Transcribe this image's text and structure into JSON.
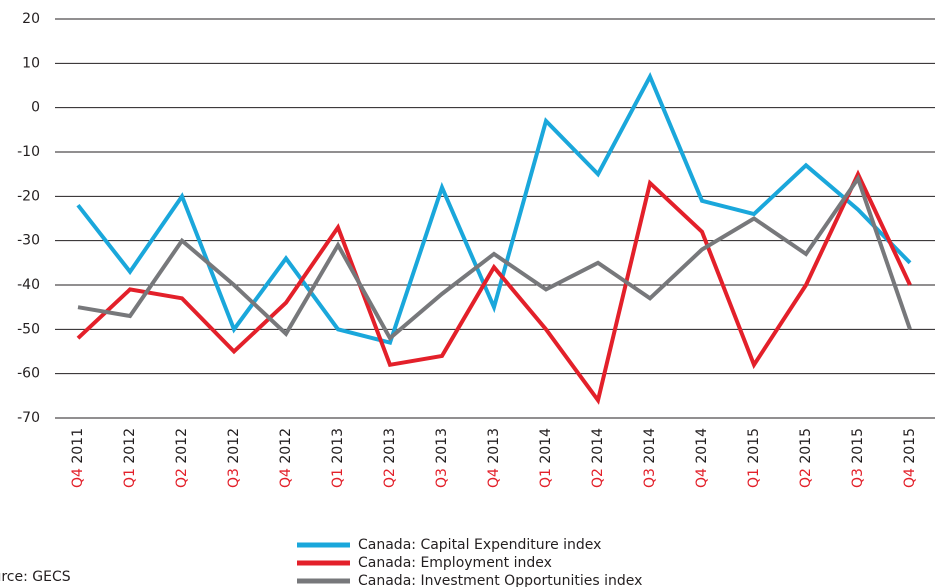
{
  "chart_data": {
    "type": "line",
    "categories": [
      "Q4 2011",
      "Q1 2012",
      "Q2 2012",
      "Q3 2012",
      "Q4 2012",
      "Q1 2013",
      "Q2 2013",
      "Q3 2013",
      "Q4 2013",
      "Q1 2014",
      "Q2 2014",
      "Q3 2014",
      "Q4 2014",
      "Q1 2015",
      "Q2 2015",
      "Q3 2015",
      "Q4 2015"
    ],
    "series": [
      {
        "name": "Canada: Capital Expenditure index",
        "color": "#1aa7db",
        "values": [
          -22,
          -37,
          -20,
          -50,
          -34,
          -50,
          -53,
          -18,
          -45,
          -3,
          -15,
          7,
          -21,
          -24,
          -13,
          -23,
          -35
        ]
      },
      {
        "name": "Canada: Employment index",
        "color": "#e3202a",
        "values": [
          -52,
          -41,
          -43,
          -55,
          -44,
          -27,
          -58,
          -56,
          -36,
          -50,
          -66,
          -17,
          -28,
          -58,
          -40,
          -15,
          -40
        ]
      },
      {
        "name": "Canada: Investment Opportunities index",
        "color": "#77787b",
        "values": [
          -45,
          -47,
          -30,
          -40,
          -51,
          -31,
          -52,
          -42,
          -33,
          -41,
          -35,
          -43,
          -32,
          -25,
          -33,
          -16,
          -50
        ]
      }
    ],
    "ylim": [
      -70,
      20
    ],
    "yticks": [
      -70,
      -60,
      -50,
      -40,
      -30,
      -20,
      -10,
      0,
      10,
      20
    ],
    "grid": true,
    "category_quarter_color": "#e3202a",
    "source": "Source: GECS"
  }
}
